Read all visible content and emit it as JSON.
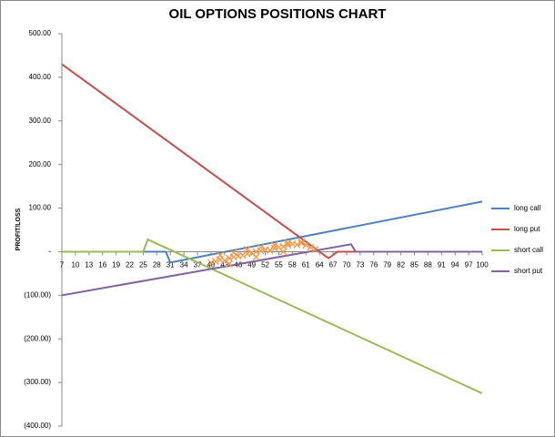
{
  "chart_data": {
    "type": "line",
    "title": "OIL OPTIONS POSITIONS CHART",
    "y_label": "PROFIT/LOSS",
    "xlim": [
      7,
      100
    ],
    "xticks": [
      7,
      10,
      13,
      16,
      19,
      22,
      25,
      28,
      31,
      34,
      37,
      40,
      43,
      46,
      49,
      52,
      55,
      58,
      61,
      64,
      67,
      70,
      73,
      76,
      79,
      82,
      85,
      88,
      91,
      94,
      97,
      100
    ],
    "ylim": [
      -400,
      500
    ],
    "yticks": [
      {
        "value": 500,
        "label": "500.00"
      },
      {
        "value": 400,
        "label": "400.00"
      },
      {
        "value": 300,
        "label": "300.00"
      },
      {
        "value": 200,
        "label": "200.00"
      },
      {
        "value": 100,
        "label": "100.00"
      },
      {
        "value": 0,
        "label": "-"
      },
      {
        "value": -100,
        "label": "(100.00)"
      },
      {
        "value": -200,
        "label": "(200.00)"
      },
      {
        "value": -300,
        "label": "(300.00)"
      },
      {
        "value": -400,
        "label": "(400.00)"
      }
    ],
    "series": [
      {
        "name": "long call",
        "color": "#4f81bd",
        "x": [
          7,
          30,
          31,
          100
        ],
        "values": [
          0,
          0,
          -25,
          115
        ]
      },
      {
        "name": "long put",
        "color": "#c0504d",
        "x": [
          7,
          66,
          68,
          100
        ],
        "values": [
          430,
          -15,
          0,
          0
        ]
      },
      {
        "name": "short call",
        "color": "#9bbb59",
        "x": [
          7,
          25,
          26,
          100
        ],
        "values": [
          0,
          0,
          28,
          -325
        ]
      },
      {
        "name": "short put",
        "color": "#8064a2",
        "x": [
          7,
          71,
          72,
          100
        ],
        "values": [
          -100,
          17,
          0,
          0
        ]
      },
      {
        "type": "scatter",
        "color": "#f79646",
        "x": [
          40,
          41,
          42,
          43,
          44,
          45,
          46,
          47,
          48,
          49,
          50,
          51,
          52,
          53,
          54,
          55,
          56,
          57,
          58,
          59,
          60,
          61,
          62,
          63,
          42,
          45,
          48,
          51,
          54,
          57,
          60,
          44,
          50,
          56
        ],
        "values": [
          -25,
          -22,
          -18,
          -20,
          -15,
          -12,
          -10,
          -8,
          -5,
          -3,
          0,
          2,
          5,
          3,
          8,
          10,
          12,
          15,
          18,
          16,
          20,
          15,
          10,
          5,
          -8,
          -2,
          5,
          10,
          15,
          20,
          22,
          -28,
          -12,
          0
        ]
      }
    ]
  }
}
